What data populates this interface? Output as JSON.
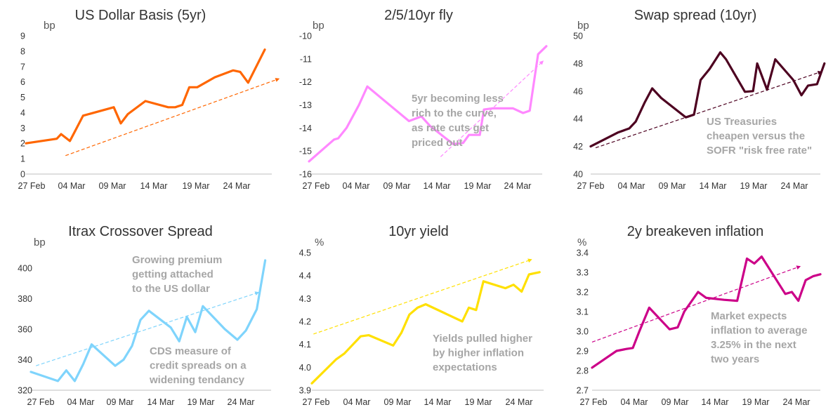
{
  "chart_data": [
    {
      "type": "line",
      "title": "US Dollar Basis (5yr)",
      "unit": "bp",
      "color": "#ff6600",
      "ylim": [
        0,
        9
      ],
      "yticks": [
        "0",
        "1",
        "2",
        "3",
        "4",
        "5",
        "6",
        "7",
        "8",
        "9"
      ],
      "xlim": [
        0,
        28
      ],
      "xticks": [
        "27 Feb",
        "04 Mar",
        "09 Mar",
        "14 Mar",
        "19 Mar",
        "24 Mar"
      ],
      "x": [
        0,
        3.5,
        4,
        5,
        5.5,
        6.5,
        10,
        10.8,
        11.6,
        13.6,
        16.2,
        17,
        17.8,
        18.6,
        19.5,
        21.5,
        23.6,
        24.4,
        25.3,
        27.2
      ],
      "y": [
        2.0,
        2.3,
        2.6,
        2.15,
        2.7,
        3.8,
        4.35,
        3.3,
        3.9,
        4.75,
        4.35,
        4.35,
        4.5,
        5.65,
        5.65,
        6.3,
        6.75,
        6.65,
        5.95,
        8.1
      ],
      "trend": {
        "from": [
          4.5,
          1.2
        ],
        "to": [
          28.8,
          6.2
        ]
      },
      "annotation": [
        "Growing premium",
        "getting attached",
        "to the US dollar"
      ]
    },
    {
      "type": "line",
      "title": "2/5/10yr fly",
      "unit": "bp",
      "color": "#ff88ff",
      "ylim": [
        -16,
        -10
      ],
      "yticks": [
        "-16",
        "-15",
        "-14",
        "-13",
        "-12",
        "-11",
        "-10"
      ],
      "xlim": [
        0,
        28
      ],
      "xticks": [
        "27 Feb",
        "04 Mar",
        "09 Mar",
        "14 Mar",
        "19 Mar",
        "24 Mar"
      ],
      "x": [
        0,
        3,
        3.5,
        4.5,
        6,
        7,
        10,
        12,
        13.5,
        14.5,
        17.3,
        18.5,
        19.2,
        20.5,
        21,
        22,
        24.5,
        25.7,
        26.5,
        27.5,
        28.5
      ],
      "y": [
        -15.45,
        -14.5,
        -14.45,
        -14.0,
        -13.0,
        -12.2,
        -13.1,
        -13.7,
        -13.5,
        -13.9,
        -14.7,
        -14.65,
        -14.3,
        -14.3,
        -13.2,
        -13.15,
        -13.15,
        -13.35,
        -13.25,
        -10.8,
        -10.45
      ],
      "trend": {
        "from": [
          15.8,
          -15.25
        ],
        "to": [
          28.1,
          -11.1
        ]
      },
      "annotation": [
        "5yr becoming less",
        "rich to the curve,",
        "as rate cuts get",
        "priced out"
      ]
    },
    {
      "type": "line",
      "title": "Swap spread (10yr)",
      "unit": "bp",
      "color": "#4d0020",
      "ylim": [
        40,
        50
      ],
      "yticks": [
        "40",
        "42",
        "44",
        "46",
        "48",
        "50"
      ],
      "xlim": [
        0,
        28
      ],
      "xticks": [
        "27 Feb",
        "04 Mar",
        "09 Mar",
        "14 Mar",
        "19 Mar",
        "24 Mar"
      ],
      "x": [
        0,
        3.3,
        4.7,
        5.5,
        6.6,
        7.5,
        8.6,
        11.6,
        12.6,
        13.4,
        14.5,
        15.8,
        16.5,
        18.8,
        19.8,
        20.3,
        21.5,
        22.5,
        24.7,
        25.7,
        26.5,
        27.6,
        28.5
      ],
      "y": [
        42.0,
        43.0,
        43.3,
        43.8,
        45.2,
        46.2,
        45.5,
        44.1,
        44.3,
        46.8,
        47.6,
        48.8,
        48.3,
        45.95,
        46.0,
        48.0,
        46.1,
        48.3,
        46.8,
        45.7,
        46.4,
        46.5,
        48.0
      ],
      "trend": {
        "from": [
          0.6,
          41.9
        ],
        "to": [
          28.1,
          47.4
        ]
      },
      "annotation": [
        "US Treasuries",
        "cheapen versus the",
        "SOFR \"risk free rate\""
      ]
    },
    {
      "type": "line",
      "title": "Itrax Crossover Spread",
      "unit": "bp",
      "color": "#7fd4fc",
      "ylim": [
        320,
        410
      ],
      "yticks": [
        "320",
        "340",
        "360",
        "380",
        "400"
      ],
      "xlim": [
        0,
        28.5
      ],
      "xticks": [
        "27 Feb",
        "04 Mar",
        "09 Mar",
        "14 Mar",
        "19 Mar",
        "24 Mar"
      ],
      "x": [
        0,
        3.2,
        4.2,
        5.2,
        6.2,
        7.2,
        10,
        11,
        12,
        13,
        14,
        16.6,
        17.6,
        18.5,
        19.5,
        20.4,
        23,
        24.5,
        25.5,
        26.8,
        27.8
      ],
      "y": [
        332,
        326,
        333,
        326,
        337,
        350,
        336,
        340,
        349,
        366,
        372,
        361,
        352,
        368,
        358,
        375,
        360,
        353,
        359,
        373,
        405
      ],
      "trend": {
        "from": [
          0.6,
          336
        ],
        "to": [
          27.0,
          384
        ]
      },
      "annotation": [
        "CDS measure of",
        "credit spreads on a",
        "widening tendancy"
      ]
    },
    {
      "type": "line",
      "title": "10yr yield",
      "unit": "%",
      "color": "#ffe000",
      "ylim": [
        3.9,
        4.5
      ],
      "yticks": [
        "3.9",
        "4.0",
        "4.1",
        "4.2",
        "4.3",
        "4.4",
        "4.5"
      ],
      "xlim": [
        0,
        28.5
      ],
      "xticks": [
        "27 Feb",
        "04 Mar",
        "09 Mar",
        "14 Mar",
        "19 Mar",
        "24 Mar"
      ],
      "x": [
        0,
        3,
        4,
        6,
        7,
        10,
        11,
        12,
        13,
        14,
        18.5,
        19.3,
        20.2,
        21.1,
        23.8,
        24.8,
        25.8,
        26.7,
        28
      ],
      "y": [
        3.93,
        4.035,
        4.06,
        4.135,
        4.14,
        4.095,
        4.15,
        4.23,
        4.26,
        4.275,
        4.2,
        4.26,
        4.25,
        4.375,
        4.345,
        4.36,
        4.33,
        4.405,
        4.415
      ],
      "trend": {
        "from": [
          0.2,
          4.145
        ],
        "to": [
          27.0,
          4.47
        ]
      },
      "annotation": [
        "Yields pulled higher",
        "by higher inflation",
        "expectations"
      ]
    },
    {
      "type": "line",
      "title": "2y breakeven inflation",
      "unit": "%",
      "color": "#cc0088",
      "ylim": [
        2.7,
        3.4
      ],
      "yticks": [
        "2.7",
        "2.8",
        "2.9",
        "3.0",
        "3.1",
        "3.2",
        "3.3",
        "3.4"
      ],
      "xlim": [
        0,
        28
      ],
      "xticks": [
        "27 Feb",
        "04 Mar",
        "09 Mar",
        "14 Mar",
        "19 Mar",
        "24 Mar"
      ],
      "x": [
        0,
        3,
        4.2,
        5,
        5.8,
        7,
        9.5,
        10.5,
        11.3,
        13,
        14,
        16.2,
        17.8,
        19,
        19.9,
        20.8,
        23.7,
        24.5,
        25.3,
        26.2,
        27.1,
        28
      ],
      "y": [
        2.815,
        2.9,
        2.91,
        2.915,
        3.0,
        3.12,
        3.01,
        3.02,
        3.1,
        3.2,
        3.17,
        3.16,
        3.155,
        3.37,
        3.345,
        3.38,
        3.19,
        3.2,
        3.155,
        3.26,
        3.28,
        3.29
      ],
      "trend": {
        "from": [
          0,
          2.945
        ],
        "to": [
          25.5,
          3.33
        ]
      },
      "annotation": [
        "Market expects",
        "inflation to average",
        "3.25% in the next",
        "two years"
      ]
    }
  ]
}
